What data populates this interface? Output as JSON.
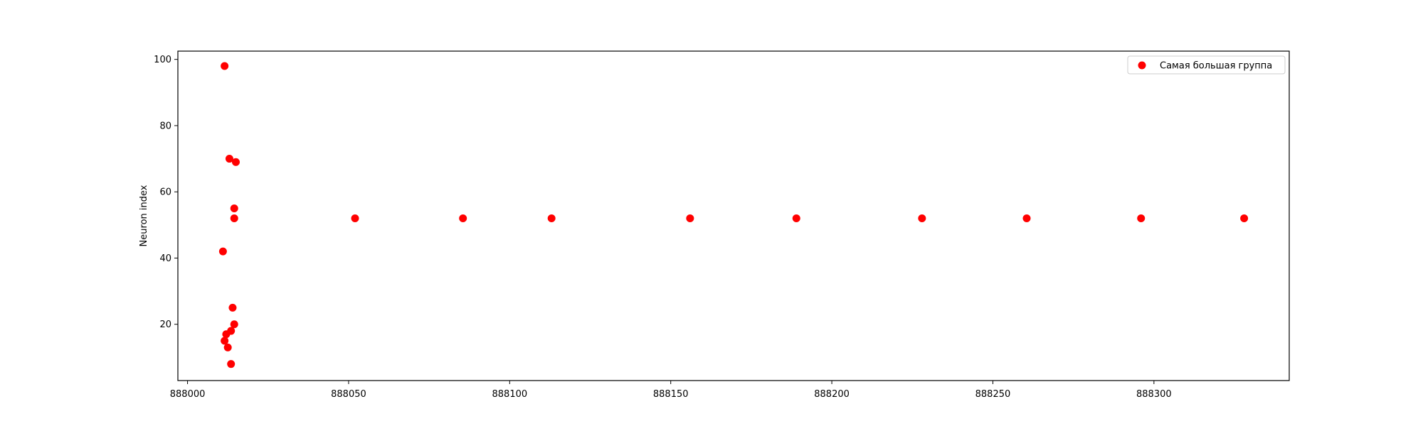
{
  "chart_data": {
    "type": "scatter",
    "title": "",
    "xlabel": "",
    "ylabel": "Neuron index",
    "xlim": [
      887997,
      888342
    ],
    "ylim": [
      3,
      102.5
    ],
    "xticks": [
      888000,
      888050,
      888100,
      888150,
      888200,
      888250,
      888300
    ],
    "yticks": [
      20,
      40,
      60,
      80,
      100
    ],
    "grid": false,
    "legend_position": "top-right",
    "series": [
      {
        "name": "Самая большая группа",
        "color": "#ff0000",
        "points": [
          {
            "x": 888011.5,
            "y": 98
          },
          {
            "x": 888013,
            "y": 70
          },
          {
            "x": 888015,
            "y": 69
          },
          {
            "x": 888014.5,
            "y": 55
          },
          {
            "x": 888014.5,
            "y": 52
          },
          {
            "x": 888011,
            "y": 42
          },
          {
            "x": 888014,
            "y": 25
          },
          {
            "x": 888014.5,
            "y": 20
          },
          {
            "x": 888013.5,
            "y": 18
          },
          {
            "x": 888012,
            "y": 17
          },
          {
            "x": 888011.5,
            "y": 15
          },
          {
            "x": 888012.5,
            "y": 13
          },
          {
            "x": 888013.5,
            "y": 8
          },
          {
            "x": 888052,
            "y": 52
          },
          {
            "x": 888085.5,
            "y": 52
          },
          {
            "x": 888113,
            "y": 52
          },
          {
            "x": 888156,
            "y": 52
          },
          {
            "x": 888189,
            "y": 52
          },
          {
            "x": 888228,
            "y": 52
          },
          {
            "x": 888260.5,
            "y": 52
          },
          {
            "x": 888296,
            "y": 52
          },
          {
            "x": 888328,
            "y": 52
          }
        ]
      }
    ]
  }
}
